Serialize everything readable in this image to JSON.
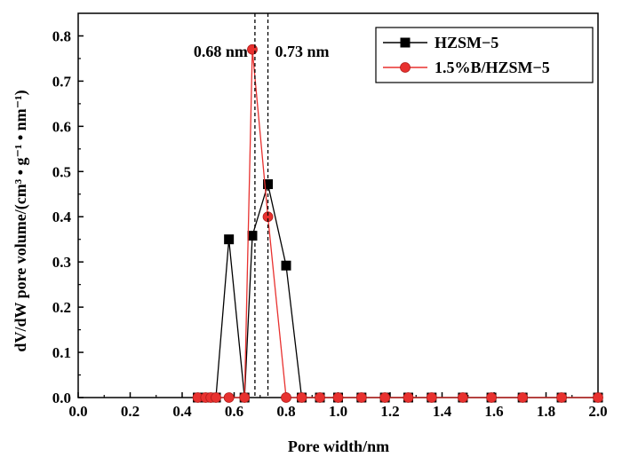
{
  "chart_data": {
    "type": "line",
    "title": "",
    "xlabel": "Pore width/nm",
    "ylabel": "dV/dW pore volume/(cm³ • g⁻¹ • nm⁻¹)",
    "xlim": [
      0.0,
      2.0
    ],
    "ylim": [
      0.0,
      0.85
    ],
    "xticks": [
      "0.0",
      "0.2",
      "0.4",
      "0.6",
      "0.8",
      "1.0",
      "1.2",
      "1.4",
      "1.6",
      "1.8",
      "2.0"
    ],
    "yticks": [
      "0.0",
      "0.1",
      "0.2",
      "0.3",
      "0.4",
      "0.5",
      "0.6",
      "0.7",
      "0.8"
    ],
    "grid": false,
    "legend_position": "top-right",
    "series": [
      {
        "name": "HZSM−5",
        "color": "#000000",
        "marker": "square",
        "x": [
          0.46,
          0.49,
          0.51,
          0.53,
          0.58,
          0.64,
          0.67,
          0.73,
          0.8,
          0.86,
          0.93,
          1.0,
          1.09,
          1.18,
          1.27,
          1.36,
          1.48,
          1.59,
          1.71,
          1.86,
          2.0
        ],
        "y": [
          0.0,
          0.0,
          0.0,
          0.0,
          0.35,
          0.0,
          0.358,
          0.472,
          0.292,
          0.0,
          0.0,
          0.0,
          0.0,
          0.0,
          0.0,
          0.0,
          0.0,
          0.0,
          0.0,
          0.0,
          0.0
        ]
      },
      {
        "name": "1.5%B/HZSM−5",
        "color": "#e8312f",
        "marker": "circle",
        "x": [
          0.46,
          0.49,
          0.51,
          0.53,
          0.58,
          0.64,
          0.67,
          0.73,
          0.8,
          0.86,
          0.93,
          1.0,
          1.09,
          1.18,
          1.27,
          1.36,
          1.48,
          1.59,
          1.71,
          1.86,
          2.0
        ],
        "y": [
          0.0,
          0.0,
          0.0,
          0.0,
          0.0,
          0.0,
          0.77,
          0.4,
          0.0,
          0.0,
          0.0,
          0.0,
          0.0,
          0.0,
          0.0,
          0.0,
          0.0,
          0.0,
          0.0,
          0.0,
          0.0
        ]
      }
    ],
    "reference_lines": [
      {
        "x": 0.68,
        "label": "0.68 nm",
        "style": "dashed"
      },
      {
        "x": 0.73,
        "label": "0.73 nm",
        "style": "dashed"
      }
    ]
  }
}
